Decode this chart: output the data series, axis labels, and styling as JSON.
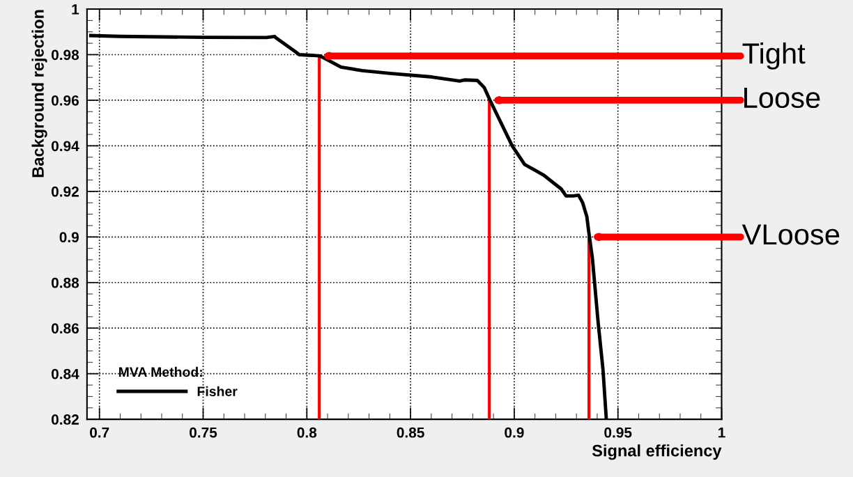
{
  "chart_data": {
    "type": "line",
    "xlabel": "Signal efficiency",
    "ylabel": "Background rejection",
    "legend_title": "MVA Method:",
    "legend": "bottom left",
    "grid": true,
    "marker": "none",
    "line_style": "solid",
    "xlim": [
      0.694,
      1.0
    ],
    "ylim": [
      0.82,
      1.0
    ],
    "xticks": [
      0.7,
      0.75,
      0.8,
      0.85,
      0.9,
      0.95,
      1
    ],
    "yticks": [
      0.82,
      0.84,
      0.86,
      0.88,
      0.9,
      0.92,
      0.94,
      0.96,
      0.98,
      1
    ],
    "x": [
      0.695,
      0.7098,
      0.75,
      0.7805,
      0.7845,
      0.7852,
      0.7946,
      0.7963,
      0.8024,
      0.8064,
      0.8165,
      0.8266,
      0.84,
      0.8603,
      0.8737,
      0.876,
      0.8822,
      0.8855,
      0.8882,
      0.899,
      0.905,
      0.9141,
      0.9226,
      0.925,
      0.9283,
      0.931,
      0.933,
      0.935,
      0.936,
      0.9377,
      0.9404,
      0.9428,
      0.9444
    ],
    "series": [
      {
        "name": "Fisher",
        "color": "#000000",
        "values": [
          0.9884,
          0.988,
          0.9876,
          0.9875,
          0.988,
          0.9873,
          0.9812,
          0.98,
          0.9797,
          0.9794,
          0.9745,
          0.973,
          0.9718,
          0.9702,
          0.9684,
          0.9689,
          0.9687,
          0.9656,
          0.9602,
          0.94,
          0.9318,
          0.9272,
          0.9211,
          0.918,
          0.918,
          0.9183,
          0.915,
          0.9089,
          0.9018,
          0.8905,
          0.863,
          0.8417,
          0.82
        ]
      },
      {
        "color": "#ff0000",
        "x": [
          0.806,
          0.806
        ],
        "values": [
          0.82,
          0.9794
        ]
      },
      {
        "color": "#ff0000",
        "x": [
          0.888,
          0.888
        ],
        "values": [
          0.82,
          0.96
        ]
      },
      {
        "color": "#ff0000",
        "x": [
          0.936,
          0.936
        ],
        "values": [
          0.82,
          0.9
        ]
      }
    ],
    "annotations": [
      "Tight",
      "Loose",
      "VLoose"
    ]
  }
}
